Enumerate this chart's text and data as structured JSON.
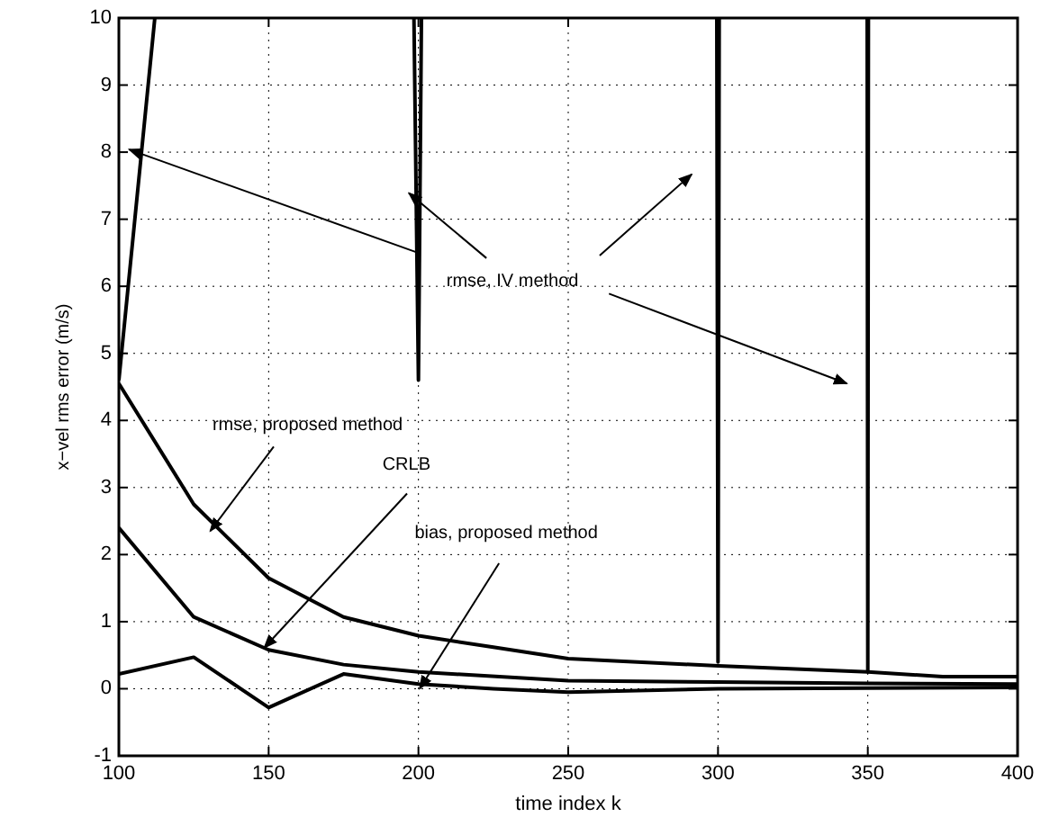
{
  "chart_data": {
    "type": "line",
    "xlabel": "time index k",
    "ylabel": "x−vel rms error (m/s)",
    "xlim": [
      100,
      400
    ],
    "ylim": [
      -1,
      10
    ],
    "xticks": [
      100,
      150,
      200,
      250,
      300,
      350,
      400
    ],
    "yticks": [
      -1,
      0,
      1,
      2,
      3,
      4,
      5,
      6,
      7,
      8,
      9,
      10
    ],
    "grid": true,
    "marker": "none",
    "line_style": "solid",
    "series": [
      {
        "color": "#000000",
        "x": [
          100,
          112,
          null,
          198.5,
          200,
          201,
          null,
          299.6,
          300,
          300.4,
          null,
          349.8,
          350,
          350.2
        ],
        "values": [
          4.6,
          10,
          null,
          10,
          4.6,
          10,
          null,
          10,
          0.4,
          10,
          null,
          10,
          0.25,
          10
        ]
      },
      {
        "color": "#000000",
        "x": [
          100,
          125,
          150,
          175,
          200,
          225,
          250,
          300,
          350,
          375,
          400
        ],
        "values": [
          4.55,
          2.75,
          1.65,
          1.07,
          0.79,
          0.62,
          0.45,
          0.34,
          0.25,
          0.18,
          0.18
        ]
      },
      {
        "color": "#000000",
        "x": [
          100,
          125,
          150,
          175,
          200,
          250,
          300,
          350,
          400
        ],
        "values": [
          2.4,
          1.07,
          0.58,
          0.36,
          0.25,
          0.12,
          0.1,
          0.08,
          0.07
        ]
      },
      {
        "color": "#000000",
        "x": [
          100,
          125,
          150,
          175,
          200,
          225,
          250,
          300,
          400
        ],
        "values": [
          0.22,
          0.47,
          -0.28,
          0.22,
          0.07,
          0.0,
          -0.05,
          0.0,
          0.02
        ]
      }
    ],
    "annotations": [
      {
        "text": "rmse, IV method",
        "x": 196.8,
        "y": 7.39
      },
      {
        "text": "rmse, proposed method",
        "x": 130.5,
        "y": 2.35
      },
      {
        "text": "CRLB",
        "x": 148.5,
        "y": 0.61
      },
      {
        "text": "bias, proposed method",
        "x": 200.4,
        "y": 0.0
      }
    ]
  }
}
